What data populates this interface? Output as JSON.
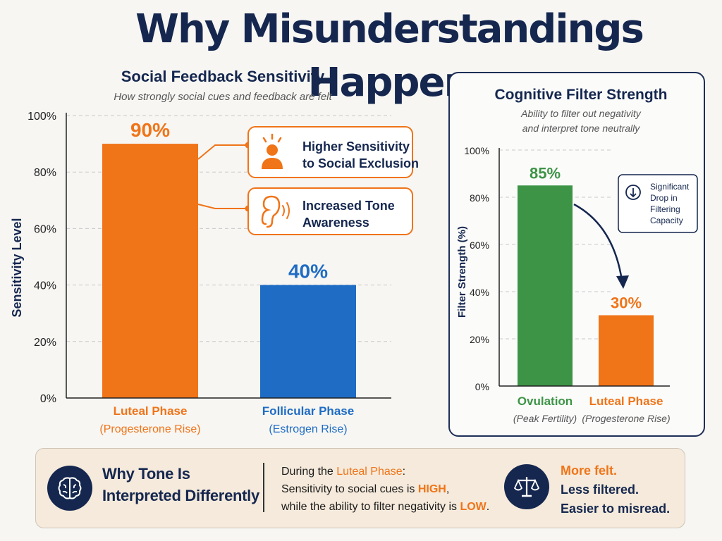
{
  "title": "Why Misunderstandings Happen",
  "chart_data": [
    {
      "type": "bar",
      "title": "Social Feedback Sensitivity",
      "subtitle": "How strongly social cues and feedback are felt",
      "ylabel": "Sensitivity Level",
      "ylim": [
        0,
        100
      ],
      "yticks": [
        "0%",
        "20%",
        "40%",
        "60%",
        "80%",
        "100%"
      ],
      "grid": true,
      "categories": [
        "Luteal Phase",
        "Follicular Phase"
      ],
      "sublabels": [
        "(Progesterone Rise)",
        "(Estrogen Rise)"
      ],
      "values": [
        90,
        40
      ],
      "value_labels": [
        "90%",
        "40%"
      ],
      "colors": [
        "#f07418",
        "#1f6cc4"
      ],
      "annotations": [
        {
          "text": "Higher Sensitivity to Social Exclusion",
          "icon": "person-alert-icon"
        },
        {
          "text": "Increased Tone Awareness",
          "icon": "ear-icon"
        }
      ]
    },
    {
      "type": "bar",
      "title": "Cognitive Filter Strength",
      "subtitle_lines": [
        "Ability to filter out negativity",
        "and interpret tone neutrally"
      ],
      "ylabel": "Filter Strength (%)",
      "ylim": [
        0,
        100
      ],
      "yticks": [
        "0%",
        "20%",
        "40%",
        "60%",
        "80%",
        "100%"
      ],
      "grid": true,
      "categories": [
        "Ovulation",
        "Luteal Phase"
      ],
      "sublabels": [
        "(Peak Fertility)",
        "(Progesterone Rise)"
      ],
      "values": [
        85,
        30
      ],
      "value_labels": [
        "85%",
        "30%"
      ],
      "colors": [
        "#3d9446",
        "#f07418"
      ],
      "annotation": {
        "lines": [
          "Significant",
          "Drop in",
          "Filtering",
          "Capacity"
        ],
        "icon": "arrow-down-circle-icon"
      }
    }
  ],
  "summary": {
    "title_lines": [
      "Why Tone Is",
      "Interpreted Differently"
    ],
    "line1_prefix": "During the ",
    "line1_highlight": "Luteal Phase",
    "line1_suffix": ":",
    "line2_prefix": "Sensitivity to social cues is ",
    "line2_highlight": "HIGH",
    "line2_suffix": ",",
    "line3_prefix": "while the ability to filter negativity is ",
    "line3_highlight": "LOW",
    "line3_suffix": ".",
    "right_lines": [
      "More felt.",
      "Less filtered.",
      "Easier to misread."
    ],
    "left_icon": "brain-icon",
    "right_icon": "scales-icon"
  }
}
